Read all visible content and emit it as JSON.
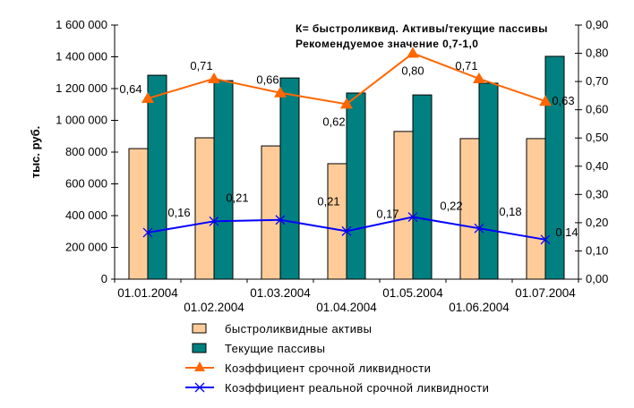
{
  "chart_data": {
    "type": "bar",
    "categories": [
      "01.01.2004",
      "01.02.2004",
      "01.03.2004",
      "01.04.2004",
      "01.05.2004",
      "01.06.2004",
      "01.07.2004"
    ],
    "category_tick_labels": [
      "01.01.2004",
      "01.02.2004",
      "01.03.2004",
      "01.04.2004",
      "01.05.2004",
      "01.06.2004",
      "01.07.2004"
    ],
    "ylabel": "тыс. руб.",
    "ylim": [
      0,
      1600000
    ],
    "y2lim": [
      0,
      0.9
    ],
    "y_ticks": [
      "0",
      "200 000",
      "400 000",
      "600 000",
      "800 000",
      "1 000 000",
      "1 200 000",
      "1 400 000",
      "1 600 000"
    ],
    "y2_ticks": [
      "0,00",
      "0,10",
      "0,20",
      "0,30",
      "0,40",
      "0,50",
      "0,60",
      "0,70",
      "0,80",
      "0,90"
    ],
    "annotation": [
      "К= быстроликвид. Активы/текущие пассивы",
      "Рекомендуемое значение 0,7-1,0"
    ],
    "legend_position": "bottom",
    "series": [
      {
        "name": "быстроликвидные активы",
        "type": "bar",
        "axis": "left",
        "color": "#FFCC99",
        "values": [
          822000,
          890000,
          839000,
          727000,
          930000,
          885000,
          885000
        ]
      },
      {
        "name": "Текущие пассивы",
        "type": "bar",
        "axis": "left",
        "color": "#008080",
        "values": [
          1284000,
          1250000,
          1267000,
          1172000,
          1160000,
          1234000,
          1403000
        ]
      },
      {
        "name": "Коэффициент срочной ликвидности",
        "type": "line",
        "axis": "right",
        "marker": "triangle",
        "color": "#FF6600",
        "values": [
          0.64,
          0.71,
          0.66,
          0.62,
          0.8,
          0.71,
          0.63
        ],
        "labels": [
          "0,64",
          "0,71",
          "0,66",
          "0,62",
          "0,80",
          "0,71",
          "0,63"
        ]
      },
      {
        "name": "Коэффициент реальной срочной ликвидности",
        "type": "line",
        "axis": "right",
        "marker": "x",
        "color": "#0000FF",
        "values": [
          0.165,
          0.205,
          0.21,
          0.17,
          0.22,
          0.18,
          0.14
        ],
        "labels": [
          "0,16",
          "0,21",
          "0,21",
          "0,17",
          "0,22",
          "0,18",
          "0,14"
        ]
      }
    ]
  }
}
